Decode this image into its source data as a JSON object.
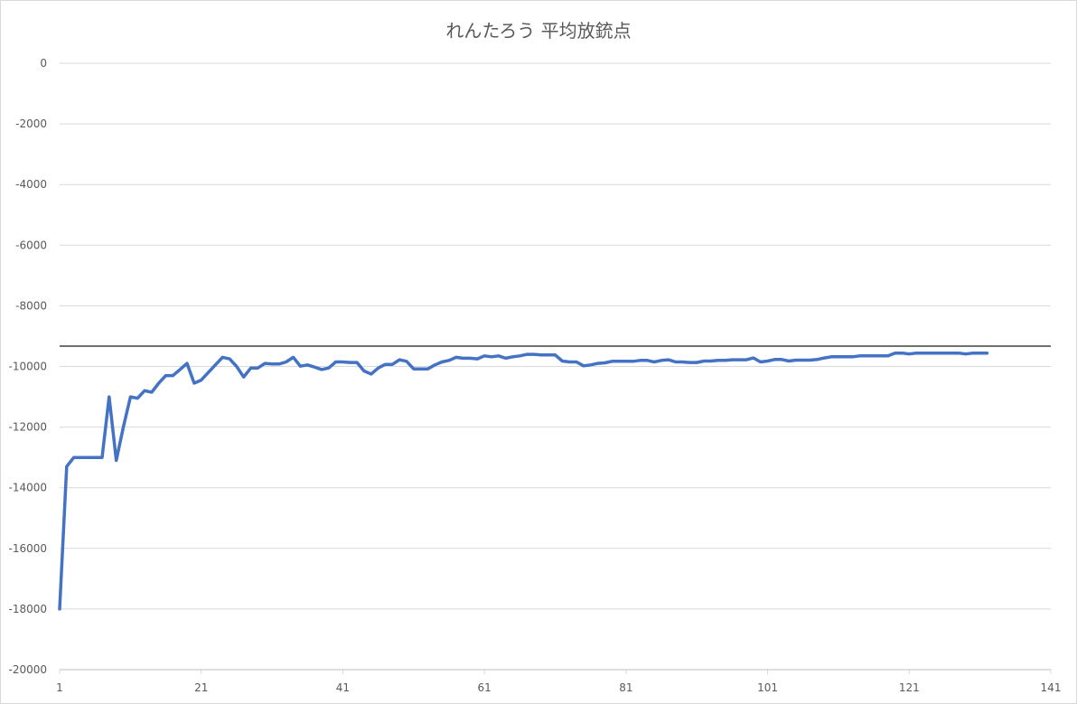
{
  "chart_data": {
    "type": "line",
    "title": "れんたろう 平均放銃点",
    "xlabel": "",
    "ylabel": "",
    "xlim": [
      1,
      141
    ],
    "ylim": [
      -20000,
      0
    ],
    "x_ticks": [
      "1",
      "21",
      "41",
      "61",
      "81",
      "101",
      "121",
      "141"
    ],
    "y_ticks": [
      "0",
      "-2000",
      "-4000",
      "-6000",
      "-8000",
      "-10000",
      "-12000",
      "-14000",
      "-16000",
      "-18000",
      "-20000"
    ],
    "grid": true,
    "legend": "none",
    "reference_line": -9330,
    "series_color": "#4472c4",
    "reference_color": "#404040",
    "grid_color": "#d9d9d9",
    "series": [
      {
        "values": [
          -18000,
          -13300,
          -13000,
          -13000,
          -13000,
          -13000,
          -13000,
          -11000,
          -13100,
          -12000,
          -11000,
          -11050,
          -10800,
          -10850,
          -10550,
          -10300,
          -10300,
          -10100,
          -9900,
          -10550,
          -10450,
          -10200,
          -9950,
          -9700,
          -9750,
          -10000,
          -10350,
          -10050,
          -10050,
          -9900,
          -9920,
          -9920,
          -9850,
          -9700,
          -9990,
          -9950,
          -10020,
          -10100,
          -10050,
          -9850,
          -9850,
          -9870,
          -9870,
          -10150,
          -10250,
          -10050,
          -9930,
          -9930,
          -9780,
          -9830,
          -10080,
          -10080,
          -10080,
          -9950,
          -9850,
          -9800,
          -9700,
          -9730,
          -9730,
          -9750,
          -9650,
          -9680,
          -9650,
          -9730,
          -9680,
          -9650,
          -9600,
          -9600,
          -9620,
          -9620,
          -9620,
          -9820,
          -9850,
          -9850,
          -9980,
          -9950,
          -9900,
          -9880,
          -9830,
          -9830,
          -9830,
          -9830,
          -9800,
          -9800,
          -9850,
          -9800,
          -9780,
          -9850,
          -9850,
          -9870,
          -9870,
          -9820,
          -9820,
          -9800,
          -9800,
          -9780,
          -9780,
          -9780,
          -9720,
          -9850,
          -9820,
          -9770,
          -9770,
          -9820,
          -9790,
          -9790,
          -9790,
          -9770,
          -9720,
          -9680,
          -9680,
          -9680,
          -9680,
          -9650,
          -9650,
          -9650,
          -9650,
          -9650,
          -9560,
          -9560,
          -9590,
          -9560,
          -9560,
          -9560,
          -9560,
          -9560,
          -9560,
          -9560,
          -9590,
          -9560,
          -9560,
          -9560
        ]
      }
    ]
  }
}
